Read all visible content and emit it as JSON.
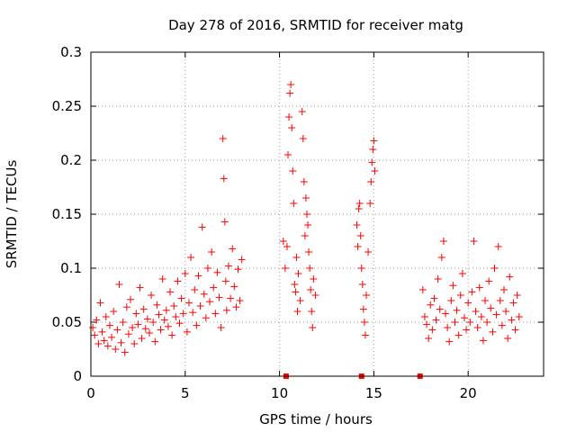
{
  "chart_data": {
    "type": "scatter",
    "title": "Day 278 of 2016, SRMTID for receiver matg",
    "xlabel": "GPS time / hours",
    "ylabel": "SRMTID / TECUs",
    "xlim": [
      0,
      24
    ],
    "ylim": [
      0,
      0.3
    ],
    "xticks": [
      0,
      5,
      10,
      15,
      20
    ],
    "xtick_labels": [
      "0",
      "5",
      "10",
      "15",
      "20"
    ],
    "yticks": [
      0,
      0.05,
      0.1,
      0.15,
      0.2,
      0.25,
      0.3
    ],
    "ytick_labels": [
      "0",
      "0.05",
      "0.1",
      "0.15",
      "0.2",
      "0.25",
      "0.3"
    ],
    "grid": true,
    "marker_color": "#ff0000",
    "marker": "plus",
    "points": [
      [
        0.1,
        0.045
      ],
      [
        0.2,
        0.038
      ],
      [
        0.3,
        0.052
      ],
      [
        0.4,
        0.03
      ],
      [
        0.5,
        0.068
      ],
      [
        0.6,
        0.041
      ],
      [
        0.7,
        0.033
      ],
      [
        0.8,
        0.055
      ],
      [
        0.9,
        0.028
      ],
      [
        1.0,
        0.047
      ],
      [
        1.1,
        0.036
      ],
      [
        1.2,
        0.06
      ],
      [
        1.3,
        0.025
      ],
      [
        1.4,
        0.043
      ],
      [
        1.5,
        0.085
      ],
      [
        1.6,
        0.031
      ],
      [
        1.7,
        0.05
      ],
      [
        1.8,
        0.022
      ],
      [
        1.9,
        0.064
      ],
      [
        2.0,
        0.039
      ],
      [
        2.1,
        0.071
      ],
      [
        2.2,
        0.045
      ],
      [
        2.3,
        0.03
      ],
      [
        2.4,
        0.058
      ],
      [
        2.5,
        0.048
      ],
      [
        2.6,
        0.082
      ],
      [
        2.7,
        0.035
      ],
      [
        2.8,
        0.062
      ],
      [
        2.9,
        0.044
      ],
      [
        3.0,
        0.053
      ],
      [
        3.1,
        0.04
      ],
      [
        3.2,
        0.075
      ],
      [
        3.3,
        0.05
      ],
      [
        3.4,
        0.032
      ],
      [
        3.5,
        0.066
      ],
      [
        3.6,
        0.057
      ],
      [
        3.7,
        0.043
      ],
      [
        3.8,
        0.09
      ],
      [
        3.9,
        0.052
      ],
      [
        4.0,
        0.061
      ],
      [
        4.1,
        0.046
      ],
      [
        4.2,
        0.078
      ],
      [
        4.3,
        0.038
      ],
      [
        4.4,
        0.065
      ],
      [
        4.5,
        0.055
      ],
      [
        4.6,
        0.088
      ],
      [
        4.7,
        0.049
      ],
      [
        4.8,
        0.072
      ],
      [
        4.9,
        0.058
      ],
      [
        5.0,
        0.095
      ],
      [
        5.1,
        0.041
      ],
      [
        5.2,
        0.068
      ],
      [
        5.3,
        0.11
      ],
      [
        5.4,
        0.059
      ],
      [
        5.5,
        0.08
      ],
      [
        5.6,
        0.047
      ],
      [
        5.7,
        0.093
      ],
      [
        5.8,
        0.065
      ],
      [
        5.9,
        0.138
      ],
      [
        6.0,
        0.076
      ],
      [
        6.1,
        0.054
      ],
      [
        6.2,
        0.1
      ],
      [
        6.3,
        0.069
      ],
      [
        6.4,
        0.115
      ],
      [
        6.5,
        0.082
      ],
      [
        6.6,
        0.058
      ],
      [
        6.7,
        0.096
      ],
      [
        6.8,
        0.073
      ],
      [
        6.9,
        0.045
      ],
      [
        7.0,
        0.22
      ],
      [
        7.05,
        0.183
      ],
      [
        7.1,
        0.143
      ],
      [
        7.15,
        0.088
      ],
      [
        7.2,
        0.061
      ],
      [
        7.3,
        0.102
      ],
      [
        7.4,
        0.072
      ],
      [
        7.5,
        0.118
      ],
      [
        7.6,
        0.083
      ],
      [
        7.7,
        0.064
      ],
      [
        7.8,
        0.099
      ],
      [
        7.9,
        0.07
      ],
      [
        8.0,
        0.108
      ],
      [
        10.2,
        0.125
      ],
      [
        10.3,
        0.1
      ],
      [
        10.4,
        0.12
      ],
      [
        10.45,
        0.205
      ],
      [
        10.5,
        0.24
      ],
      [
        10.55,
        0.262
      ],
      [
        10.6,
        0.27
      ],
      [
        10.65,
        0.23
      ],
      [
        10.7,
        0.19
      ],
      [
        10.75,
        0.16
      ],
      [
        10.8,
        0.085
      ],
      [
        10.85,
        0.078
      ],
      [
        10.9,
        0.11
      ],
      [
        10.95,
        0.06
      ],
      [
        11.0,
        0.095
      ],
      [
        11.1,
        0.07
      ],
      [
        11.2,
        0.245
      ],
      [
        11.25,
        0.22
      ],
      [
        11.3,
        0.18
      ],
      [
        11.35,
        0.13
      ],
      [
        11.4,
        0.165
      ],
      [
        11.45,
        0.15
      ],
      [
        11.5,
        0.14
      ],
      [
        11.55,
        0.115
      ],
      [
        11.6,
        0.1
      ],
      [
        11.65,
        0.08
      ],
      [
        11.7,
        0.06
      ],
      [
        11.75,
        0.045
      ],
      [
        11.8,
        0.09
      ],
      [
        11.9,
        0.075
      ],
      [
        14.1,
        0.14
      ],
      [
        14.15,
        0.12
      ],
      [
        14.2,
        0.155
      ],
      [
        14.25,
        0.16
      ],
      [
        14.3,
        0.13
      ],
      [
        14.35,
        0.1
      ],
      [
        14.4,
        0.085
      ],
      [
        14.45,
        0.062
      ],
      [
        14.5,
        0.05
      ],
      [
        14.55,
        0.038
      ],
      [
        14.6,
        0.075
      ],
      [
        14.7,
        0.115
      ],
      [
        14.8,
        0.16
      ],
      [
        14.85,
        0.18
      ],
      [
        14.9,
        0.198
      ],
      [
        14.95,
        0.21
      ],
      [
        15.0,
        0.218
      ],
      [
        15.05,
        0.19
      ],
      [
        17.6,
        0.08
      ],
      [
        17.7,
        0.055
      ],
      [
        17.8,
        0.048
      ],
      [
        17.9,
        0.035
      ],
      [
        18.0,
        0.066
      ],
      [
        18.1,
        0.043
      ],
      [
        18.2,
        0.072
      ],
      [
        18.3,
        0.052
      ],
      [
        18.4,
        0.09
      ],
      [
        18.5,
        0.062
      ],
      [
        18.6,
        0.11
      ],
      [
        18.7,
        0.125
      ],
      [
        18.8,
        0.058
      ],
      [
        18.9,
        0.045
      ],
      [
        19.0,
        0.032
      ],
      [
        19.1,
        0.07
      ],
      [
        19.2,
        0.084
      ],
      [
        19.3,
        0.05
      ],
      [
        19.4,
        0.061
      ],
      [
        19.5,
        0.038
      ],
      [
        19.6,
        0.075
      ],
      [
        19.7,
        0.095
      ],
      [
        19.8,
        0.054
      ],
      [
        19.9,
        0.043
      ],
      [
        20.0,
        0.068
      ],
      [
        20.1,
        0.05
      ],
      [
        20.2,
        0.078
      ],
      [
        20.3,
        0.125
      ],
      [
        20.4,
        0.06
      ],
      [
        20.5,
        0.045
      ],
      [
        20.6,
        0.082
      ],
      [
        20.7,
        0.055
      ],
      [
        20.8,
        0.033
      ],
      [
        20.9,
        0.07
      ],
      [
        21.0,
        0.05
      ],
      [
        21.1,
        0.088
      ],
      [
        21.2,
        0.063
      ],
      [
        21.3,
        0.041
      ],
      [
        21.4,
        0.1
      ],
      [
        21.5,
        0.057
      ],
      [
        21.6,
        0.12
      ],
      [
        21.7,
        0.07
      ],
      [
        21.8,
        0.047
      ],
      [
        21.9,
        0.08
      ],
      [
        22.0,
        0.06
      ],
      [
        22.1,
        0.035
      ],
      [
        22.2,
        0.092
      ],
      [
        22.3,
        0.052
      ],
      [
        22.4,
        0.068
      ],
      [
        22.5,
        0.043
      ],
      [
        22.6,
        0.075
      ],
      [
        22.7,
        0.055
      ]
    ],
    "zero_markers_x": [
      10.35,
      14.35,
      17.45
    ]
  }
}
